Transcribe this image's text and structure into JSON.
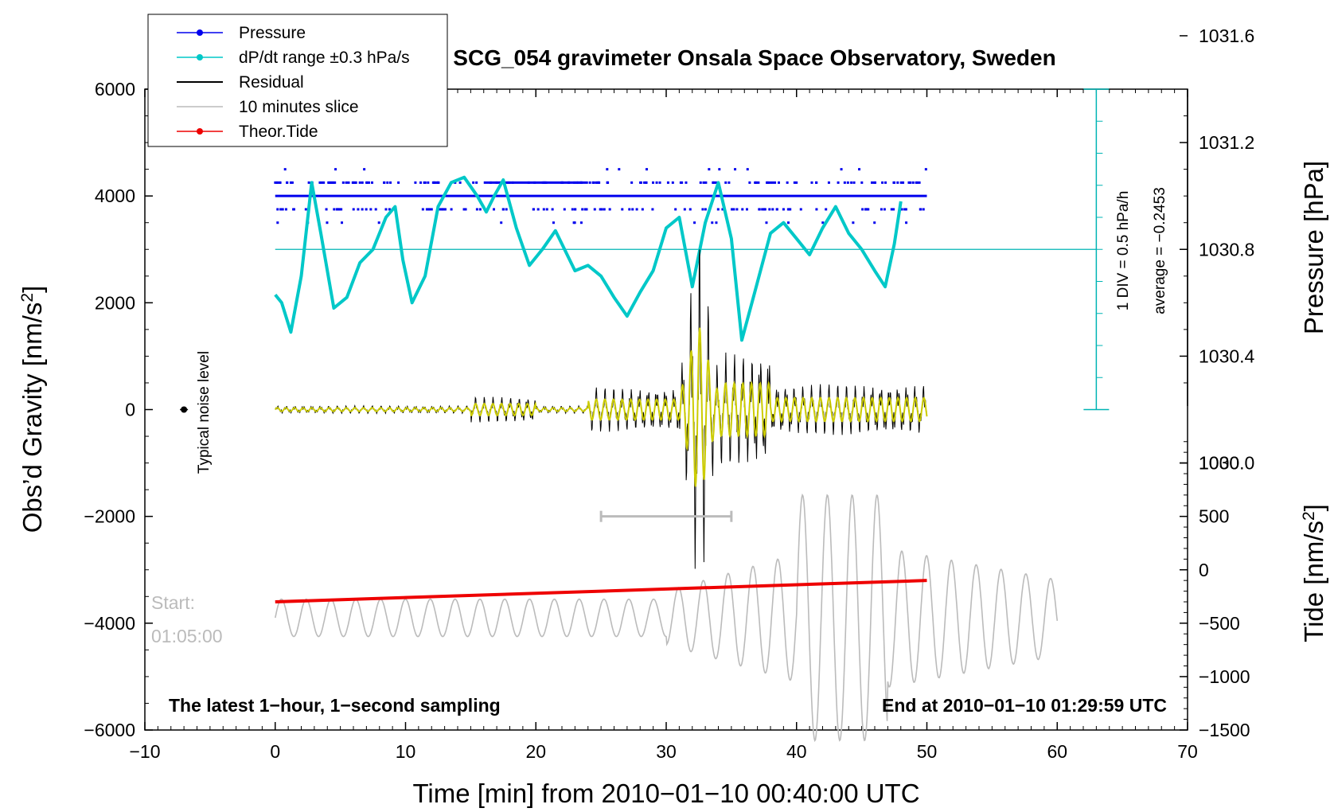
{
  "chart_data": {
    "type": "line",
    "title": "SCG_054 gravimeter Onsala Space Observatory, Sweden",
    "xlabel": "Time [min] from 2010−01−10 00:40:00 UTC",
    "ylabel_left": "Obs’d Gravity [nm/s",
    "ylabel_left_sup": "2",
    "ylabel_left_end": "]",
    "ylabel_right_pressure": "Pressure [hPa]",
    "ylabel_right_tide": "Tide [nm/s",
    "ylabel_right_tide_sup": "2",
    "ylabel_right_tide_end": "]",
    "xlim": [
      -10,
      70
    ],
    "ylim": [
      -6000,
      6000
    ],
    "x_ticks": [
      "−10",
      "0",
      "10",
      "20",
      "30",
      "40",
      "50",
      "60",
      "70"
    ],
    "x_tick_values": [
      -10,
      0,
      10,
      20,
      30,
      40,
      50,
      60,
      70
    ],
    "y_ticks": [
      "6000",
      "4000",
      "2000",
      "0",
      "−2000",
      "−4000",
      "−6000"
    ],
    "y_tick_values": [
      6000,
      4000,
      2000,
      0,
      -2000,
      -4000,
      -6000
    ],
    "pressure_ticks": [
      "1031.6",
      "1031.2",
      "1030.8",
      "1030.4",
      "1030.0"
    ],
    "pressure_tick_values": [
      1031.6,
      1031.2,
      1030.8,
      1030.4,
      1030.0
    ],
    "pressure_axis": {
      "ref_value": 1030.8,
      "ref_gravity": 3000,
      "gravity_per_hPa": 5000
    },
    "tide_ticks": [
      "1000",
      "500",
      "0",
      "−500",
      "−1000",
      "−1500"
    ],
    "tide_tick_values": [
      1000,
      500,
      0,
      -500,
      -1000,
      -1500
    ],
    "tide_axis": {
      "ref_value": 0,
      "ref_gravity": -3000,
      "gravity_per_unit": 2
    },
    "legend": [
      {
        "label": "Pressure",
        "color": "#0000ee",
        "marker": true
      },
      {
        "label": "dP/dt range ±0.3 hPa/s",
        "color": "#00c8c8",
        "marker": true
      },
      {
        "label": "Residual",
        "color": "#000000",
        "marker": false
      },
      {
        "label": "10 minutes slice",
        "color": "#bbbbbb",
        "marker": false
      },
      {
        "label": "Theor.Tide",
        "color": "#ee0000",
        "marker": true
      }
    ],
    "annotations": {
      "div_label": "1 DIV = 0.5 hPa/h",
      "average_label": "average = −0.2453",
      "noise_label": "Typical noise level",
      "start_label": "Start:",
      "start_time": "01:05:00",
      "bottom_left": "The latest 1−hour, 1−second sampling",
      "bottom_right": "End at 2010−01−10 01:29:59 UTC"
    },
    "series": [
      {
        "name": "Pressure",
        "color": "#0000ee",
        "levels_gravity": [
          4000,
          4250,
          3750,
          3500
        ],
        "x_range": [
          0,
          50
        ]
      },
      {
        "name": "dP/dt",
        "color": "#00c8c8",
        "baseline_gravity": 3000,
        "x": [
          0,
          0.5,
          1.2,
          2.0,
          2.8,
          3.5,
          4.5,
          5.5,
          6.5,
          7.5,
          8.5,
          9.2,
          9.8,
          10.5,
          11.5,
          12.5,
          13.5,
          14.5,
          15.5,
          16.2,
          16.8,
          17.5,
          18.5,
          19.5,
          20.5,
          21.5,
          22.0,
          23.0,
          24.0,
          25.0,
          26.0,
          27.0,
          28.0,
          29.0,
          30.0,
          31.0,
          32.0,
          33.0,
          34.0,
          35.0,
          35.8,
          36.8,
          38.0,
          39.0,
          40.0,
          41.0,
          42.0,
          43.0,
          44.0,
          45.0,
          46.0,
          46.8,
          47.5,
          48.0
        ],
        "y": [
          2150,
          2000,
          1450,
          2500,
          4250,
          3300,
          1900,
          2100,
          2750,
          3000,
          3600,
          3800,
          2800,
          2000,
          2500,
          3800,
          4250,
          4350,
          4000,
          3700,
          4000,
          4300,
          3400,
          2700,
          3000,
          3350,
          3100,
          2600,
          2700,
          2500,
          2100,
          1750,
          2200,
          2600,
          3400,
          3600,
          2300,
          3500,
          4250,
          3200,
          1300,
          2200,
          3300,
          3500,
          3200,
          2900,
          3400,
          3800,
          3300,
          3000,
          2600,
          2300,
          3100,
          3900
        ]
      },
      {
        "name": "Residual",
        "color": "#000000",
        "x_range": [
          0,
          50
        ],
        "peak_positive": 2700,
        "peak_negative": -2550,
        "peak_time_min": 32.5
      },
      {
        "name": "10 minutes slice",
        "color": "#bbbbbb",
        "x_range": [
          0,
          60
        ],
        "marker_range": [
          25,
          35
        ],
        "marker_gravity": -2000
      },
      {
        "name": "Theor.Tide",
        "color": "#ee0000",
        "x": [
          0,
          50
        ],
        "y": [
          -3600,
          -3200
        ]
      }
    ],
    "noise_point": {
      "x": -7,
      "y": 0
    }
  }
}
